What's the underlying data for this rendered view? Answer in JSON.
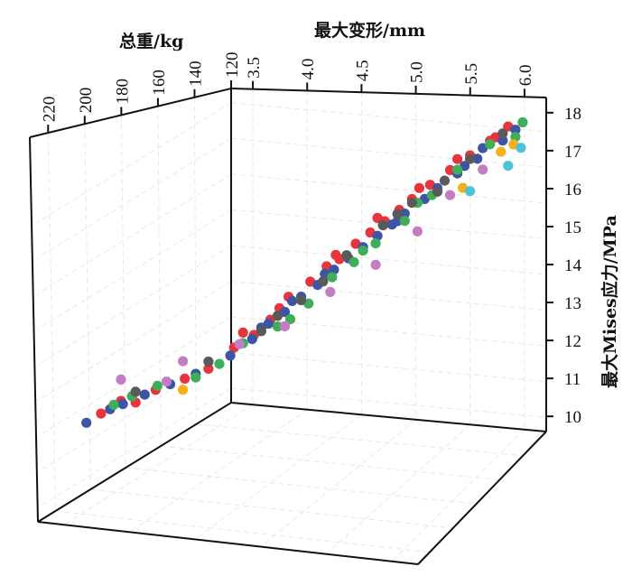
{
  "chart_data": {
    "type": "scatter",
    "title": "",
    "xlabel": "最大变形/mm",
    "ylabel": "总重/kg",
    "zlabel": "最大Mises应力/MPa",
    "x_ticks": [
      "3.5",
      "4.0",
      "4.5",
      "5.0",
      "5.5",
      "6.0"
    ],
    "y_ticks": [
      "120",
      "140",
      "160",
      "180",
      "200",
      "220"
    ],
    "z_ticks": [
      "10",
      "11",
      "12",
      "13",
      "14",
      "15",
      "16",
      "17",
      "18"
    ],
    "xlim": [
      3.3,
      6.2
    ],
    "ylim": [
      120,
      230
    ],
    "zlim": [
      9.6,
      18.4
    ],
    "grid": true,
    "colors": {
      "red": "#e8343c",
      "blue": "#3d55a5",
      "green": "#3fae5a",
      "gray": "#5a5a5a",
      "violet": "#c37dc2",
      "yellow": "#f2b11d",
      "cyan": "#4fc4d7"
    },
    "series": [
      {
        "color": "#e8343c",
        "points": [
          [
            3.45,
            200,
            10.3
          ],
          [
            3.55,
            195,
            10.6
          ],
          [
            3.7,
            185,
            10.8
          ],
          [
            3.8,
            175,
            11.0
          ],
          [
            3.9,
            168,
            11.2
          ],
          [
            4.0,
            160,
            11.7
          ],
          [
            4.05,
            158,
            12.1
          ],
          [
            4.2,
            152,
            12.4
          ],
          [
            4.25,
            150,
            12.7
          ],
          [
            4.3,
            148,
            13.0
          ],
          [
            4.45,
            145,
            13.4
          ],
          [
            4.55,
            142,
            13.8
          ],
          [
            4.6,
            140,
            14.1
          ],
          [
            4.75,
            138,
            14.4
          ],
          [
            4.85,
            136,
            14.7
          ],
          [
            4.95,
            134,
            15.0
          ],
          [
            5.05,
            132,
            15.3
          ],
          [
            5.15,
            131,
            15.6
          ],
          [
            5.3,
            130,
            16.0
          ],
          [
            5.45,
            128,
            16.4
          ],
          [
            5.6,
            126,
            16.8
          ],
          [
            5.8,
            124,
            17.3
          ],
          [
            5.9,
            123,
            17.6
          ],
          [
            4.1,
            155,
            12.0
          ],
          [
            4.65,
            141,
            14.0
          ],
          [
            5.2,
            130,
            15.9
          ],
          [
            5.5,
            127,
            16.7
          ],
          [
            3.6,
            190,
            10.5
          ],
          [
            4.9,
            135,
            15.1
          ],
          [
            5.75,
            124,
            17.2
          ]
        ]
      },
      {
        "color": "#3d55a5",
        "points": [
          [
            3.4,
            205,
            10.1
          ],
          [
            3.5,
            198,
            10.4
          ],
          [
            3.65,
            188,
            10.7
          ],
          [
            3.75,
            180,
            10.9
          ],
          [
            3.85,
            172,
            11.1
          ],
          [
            4.0,
            162,
            11.5
          ],
          [
            4.1,
            156,
            11.9
          ],
          [
            4.2,
            153,
            12.3
          ],
          [
            4.3,
            150,
            12.6
          ],
          [
            4.4,
            147,
            13.0
          ],
          [
            4.5,
            144,
            13.3
          ],
          [
            4.6,
            141,
            13.7
          ],
          [
            4.7,
            139,
            14.0
          ],
          [
            4.8,
            137,
            14.3
          ],
          [
            4.9,
            135,
            14.6
          ],
          [
            5.0,
            133,
            14.9
          ],
          [
            5.1,
            132,
            15.2
          ],
          [
            5.25,
            130,
            15.6
          ],
          [
            5.35,
            129,
            15.9
          ],
          [
            5.5,
            127,
            16.3
          ],
          [
            5.65,
            125,
            16.7
          ],
          [
            5.85,
            123,
            17.2
          ],
          [
            5.95,
            122,
            17.5
          ],
          [
            4.15,
            154,
            12.2
          ],
          [
            4.55,
            143,
            13.6
          ],
          [
            5.05,
            133,
            15.0
          ],
          [
            5.55,
            126,
            16.5
          ],
          [
            3.55,
            194,
            10.5
          ],
          [
            4.35,
            149,
            12.9
          ],
          [
            5.7,
            125,
            17.0
          ]
        ]
      },
      {
        "color": "#3fae5a",
        "points": [
          [
            3.5,
            196,
            10.5
          ],
          [
            3.7,
            184,
            10.9
          ],
          [
            3.95,
            165,
            11.3
          ],
          [
            4.05,
            158,
            11.8
          ],
          [
            4.25,
            151,
            12.2
          ],
          [
            4.45,
            146,
            12.8
          ],
          [
            4.6,
            142,
            13.5
          ],
          [
            4.75,
            139,
            13.9
          ],
          [
            4.9,
            136,
            14.4
          ],
          [
            5.1,
            132,
            15.0
          ],
          [
            5.3,
            129,
            15.7
          ],
          [
            5.5,
            127,
            16.4
          ],
          [
            5.75,
            124,
            17.1
          ],
          [
            6.0,
            121,
            17.7
          ],
          [
            5.95,
            122,
            17.3
          ],
          [
            4.35,
            150,
            12.4
          ],
          [
            3.85,
            172,
            11.0
          ],
          [
            5.2,
            131,
            15.5
          ],
          [
            4.8,
            137,
            14.2
          ],
          [
            3.6,
            192,
            10.7
          ]
        ]
      },
      {
        "color": "#5a5a5a",
        "points": [
          [
            3.6,
            190,
            10.8
          ],
          [
            3.9,
            168,
            11.4
          ],
          [
            4.15,
            154,
            12.1
          ],
          [
            4.4,
            147,
            12.9
          ],
          [
            4.7,
            140,
            14.1
          ],
          [
            4.95,
            135,
            14.9
          ],
          [
            5.15,
            131,
            15.5
          ],
          [
            5.4,
            128,
            16.1
          ],
          [
            5.6,
            126,
            16.7
          ],
          [
            5.85,
            123,
            17.4
          ],
          [
            4.55,
            144,
            13.4
          ],
          [
            5.05,
            133,
            15.2
          ],
          [
            5.35,
            129,
            15.8
          ],
          [
            4.25,
            151,
            12.5
          ]
        ]
      },
      {
        "color": "#c37dc2",
        "points": [
          [
            3.55,
            195,
            11.2
          ],
          [
            3.8,
            176,
            11.5
          ],
          [
            4.05,
            160,
            11.8
          ],
          [
            4.3,
            150,
            12.2
          ],
          [
            4.6,
            143,
            13.1
          ],
          [
            4.9,
            136,
            13.8
          ],
          [
            5.2,
            131,
            14.7
          ],
          [
            5.45,
            128,
            15.7
          ],
          [
            5.7,
            125,
            16.4
          ],
          [
            3.75,
            182,
            11.0
          ]
        ]
      },
      {
        "color": "#f2b11d",
        "points": [
          [
            3.8,
            176,
            10.7
          ],
          [
            5.55,
            127,
            15.9
          ],
          [
            5.85,
            124,
            16.9
          ],
          [
            5.95,
            123,
            17.1
          ]
        ]
      },
      {
        "color": "#4fc4d7",
        "points": [
          [
            5.6,
            126,
            15.8
          ],
          [
            5.9,
            123,
            16.5
          ],
          [
            6.0,
            122,
            17.0
          ]
        ]
      }
    ]
  }
}
